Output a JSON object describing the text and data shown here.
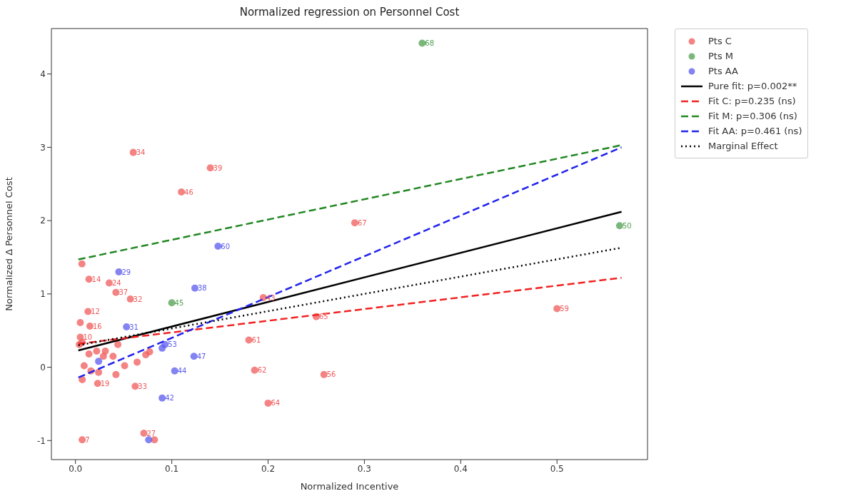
{
  "chart_data": {
    "type": "scatter",
    "title": "Normalized regression on Personnel Cost",
    "xlabel": "Normalized Incentive",
    "ylabel": "Normalized Δ Personnel Cost",
    "xlim": [
      -0.025,
      0.594
    ],
    "ylim": [
      -1.26,
      4.62
    ],
    "xticks": [
      {
        "value": 0,
        "label": "0.0"
      },
      {
        "value": 0.1,
        "label": "0.1"
      },
      {
        "value": 0.2,
        "label": "0.2"
      },
      {
        "value": 0.3,
        "label": "0.3"
      },
      {
        "value": 0.4,
        "label": "0.4"
      },
      {
        "value": 0.5,
        "label": "0.5"
      }
    ],
    "yticks": [
      -1,
      0,
      1,
      2,
      3,
      4
    ],
    "grid": false,
    "legend": "top right",
    "series": [
      {
        "name": "Pts C",
        "marker": "circle",
        "color": "#f05a5a",
        "x": [
          0.0067,
          0.014,
          0.035,
          0.042,
          0.057,
          0.013,
          0.005,
          0.015,
          0.005,
          0.007,
          0.004,
          0.014,
          0.022,
          0.031,
          0.044,
          0.029,
          0.039,
          0.051,
          0.064,
          0.073,
          0.077,
          0.009,
          0.016,
          0.024,
          0.007,
          0.023,
          0.042,
          0.062,
          0.007,
          0.071,
          0.082,
          0.06,
          0.11,
          0.14,
          0.29,
          0.195,
          0.25,
          0.18,
          0.186,
          0.258,
          0.2,
          0.5
        ],
        "values": [
          1.41,
          1.2,
          1.15,
          1.02,
          0.93,
          0.76,
          0.61,
          0.56,
          0.41,
          0.34,
          0.31,
          0.18,
          0.22,
          0.22,
          0.31,
          0.15,
          0.15,
          0.02,
          0.07,
          0.17,
          0.21,
          0.02,
          -0.05,
          -0.07,
          -0.17,
          -0.22,
          -0.1,
          -0.26,
          -0.99,
          -0.9,
          -0.99,
          2.93,
          2.39,
          2.72,
          1.97,
          0.95,
          0.69,
          0.37,
          -0.04,
          -0.1,
          -0.49,
          0.8
        ]
      },
      {
        "name": "Pts M",
        "marker": "circle",
        "color": "#4f9f4f",
        "x": [
          0.1,
          0.36,
          0.565
        ],
        "values": [
          0.88,
          4.42,
          1.93
        ]
      },
      {
        "name": "Pts AA",
        "marker": "circle",
        "color": "#5a5aee",
        "x": [
          0.045,
          0.053,
          0.093,
          0.09,
          0.024,
          0.103,
          0.09,
          0.076,
          0.124,
          0.123,
          0.148
        ],
        "values": [
          1.3,
          0.55,
          0.31,
          0.26,
          0.08,
          -0.05,
          -0.42,
          -0.99,
          1.08,
          0.15,
          1.65
        ]
      },
      {
        "name": "Pure fit: p=0.002**",
        "type": "line",
        "marker": "none",
        "color": "#000000",
        "line_style": "solid",
        "x": [
          0.003,
          0.567
        ],
        "values": [
          0.23,
          2.12
        ]
      },
      {
        "name": "Fit C: p=0.235 (ns)",
        "type": "line",
        "marker": "none",
        "color": "#f22222",
        "line_style": "dashed",
        "x": [
          0.003,
          0.567
        ],
        "values": [
          0.32,
          1.22
        ]
      },
      {
        "name": "Fit M: p=0.306 (ns)",
        "type": "line",
        "marker": "none",
        "color": "#228822",
        "line_style": "dashed",
        "x": [
          0.003,
          0.567
        ],
        "values": [
          1.47,
          3.03
        ]
      },
      {
        "name": "Fit AA: p=0.461 (ns)",
        "type": "line",
        "marker": "none",
        "color": "#2222ee",
        "line_style": "dashed",
        "x": [
          0.003,
          0.567
        ],
        "values": [
          -0.14,
          3.0
        ]
      },
      {
        "name": "Marginal Effect",
        "type": "line",
        "marker": "none",
        "color": "#000000",
        "line_style": "dotted",
        "x": [
          0.003,
          0.567
        ],
        "values": [
          0.3,
          1.63
        ]
      }
    ],
    "annotations": [
      {
        "text": "14",
        "x": 0.014,
        "y": 1.2
      },
      {
        "text": "24",
        "x": 0.035,
        "y": 1.15
      },
      {
        "text": "37",
        "x": 0.042,
        "y": 1.02
      },
      {
        "text": "32",
        "x": 0.057,
        "y": 0.93
      },
      {
        "text": "12",
        "x": 0.013,
        "y": 0.76
      },
      {
        "text": "16",
        "x": 0.015,
        "y": 0.56
      },
      {
        "text": "10",
        "x": 0.005,
        "y": 0.41
      },
      {
        "text": "19",
        "x": 0.023,
        "y": -0.22
      },
      {
        "text": "33",
        "x": 0.062,
        "y": -0.26
      },
      {
        "text": "7",
        "x": 0.007,
        "y": -0.99
      },
      {
        "text": "27",
        "x": 0.071,
        "y": -0.9
      },
      {
        "text": "34",
        "x": 0.06,
        "y": 2.93
      },
      {
        "text": "46",
        "x": 0.11,
        "y": 2.39
      },
      {
        "text": "39",
        "x": 0.14,
        "y": 2.72
      },
      {
        "text": "67",
        "x": 0.29,
        "y": 1.97
      },
      {
        "text": "43",
        "x": 0.195,
        "y": 0.95
      },
      {
        "text": "65",
        "x": 0.25,
        "y": 0.69
      },
      {
        "text": "61",
        "x": 0.18,
        "y": 0.37
      },
      {
        "text": "62",
        "x": 0.186,
        "y": -0.04
      },
      {
        "text": "56",
        "x": 0.258,
        "y": -0.1
      },
      {
        "text": "64",
        "x": 0.2,
        "y": -0.49
      },
      {
        "text": "59",
        "x": 0.5,
        "y": 0.8
      },
      {
        "text": "45",
        "x": 0.1,
        "y": 0.88
      },
      {
        "text": "68",
        "x": 0.36,
        "y": 4.42
      },
      {
        "text": "50",
        "x": 0.565,
        "y": 1.93
      },
      {
        "text": "29",
        "x": 0.045,
        "y": 1.3
      },
      {
        "text": "31",
        "x": 0.053,
        "y": 0.55
      },
      {
        "text": "53",
        "x": 0.093,
        "y": 0.31
      },
      {
        "text": "44",
        "x": 0.103,
        "y": -0.05
      },
      {
        "text": "42",
        "x": 0.09,
        "y": -0.42
      },
      {
        "text": "38",
        "x": 0.124,
        "y": 1.08
      },
      {
        "text": "47",
        "x": 0.123,
        "y": 0.15
      },
      {
        "text": "60",
        "x": 0.148,
        "y": 1.65
      }
    ]
  }
}
